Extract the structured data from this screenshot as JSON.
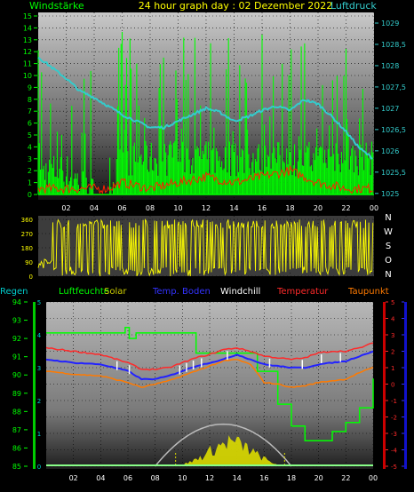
{
  "header": {
    "title": "24 hour graph day : 02 Dezember 2022",
    "left_label": "Windstärke",
    "right_label": "Luftdruck"
  },
  "colors": {
    "wind": "#00ff00",
    "gust": "#ff2200",
    "pressure": "#33cccc",
    "direction": "#ffff00",
    "humidity": "#00ff00",
    "temperature": "#ff2a2a",
    "dewpoint": "#ff7a00",
    "windchill": "#ffffff",
    "ground": "#2222ff",
    "solar": "#aaaaaa"
  },
  "chart_data": [
    {
      "type": "line",
      "name": "wind-pressure",
      "x_ticks": [
        "02",
        "04",
        "06",
        "08",
        "10",
        "12",
        "14",
        "16",
        "18",
        "20",
        "22",
        "00"
      ],
      "y_left_ticks": [
        "0",
        "1",
        "2",
        "3",
        "4",
        "5",
        "6",
        "7",
        "8",
        "9",
        "10",
        "11",
        "12",
        "13",
        "14",
        "15"
      ],
      "y_right_ticks": [
        "1025",
        "1025,5",
        "1026",
        "1026,5",
        "1027",
        "1027,5",
        "1028",
        "1028,5",
        "1029"
      ],
      "y_left_range": [
        0,
        15
      ],
      "y_right_range": [
        1024.85,
        1029.25
      ],
      "pressure": {
        "x": [
          0,
          1,
          2,
          3,
          4,
          5,
          6,
          7,
          8,
          9,
          10,
          11,
          12,
          13,
          14,
          15,
          16,
          17,
          18,
          19,
          20,
          21,
          22,
          23,
          24
        ],
        "y": [
          1028.2,
          1027.95,
          1027.7,
          1027.4,
          1027.25,
          1027.05,
          1026.85,
          1026.7,
          1026.55,
          1026.55,
          1026.7,
          1026.85,
          1027.0,
          1026.9,
          1026.7,
          1026.8,
          1026.95,
          1027.05,
          1026.95,
          1027.2,
          1027.1,
          1026.8,
          1026.45,
          1026.05,
          1025.8
        ]
      },
      "wind_avg": {
        "x": [
          0,
          2,
          4,
          5,
          6,
          8,
          10,
          12,
          14,
          16,
          18,
          20,
          22,
          24
        ],
        "y": [
          2,
          2,
          0,
          0,
          3,
          3,
          3,
          3,
          3,
          3,
          3,
          3,
          3,
          3
        ]
      },
      "gust": {
        "x": [
          0,
          5,
          6,
          8,
          10,
          12,
          14,
          16,
          18,
          20,
          22,
          24
        ],
        "y": [
          0.5,
          0.5,
          1,
          0.5,
          1,
          1.5,
          1,
          1.5,
          2,
          1,
          0.5,
          0.5
        ]
      }
    },
    {
      "type": "line",
      "name": "wind-direction",
      "y_left_ticks": [
        "0",
        "90",
        "180",
        "270",
        "360"
      ],
      "y_range": [
        0,
        360
      ],
      "y_right_labels": [
        "N",
        "W",
        "S",
        "O",
        "N"
      ]
    },
    {
      "type": "line",
      "name": "climate",
      "legend": [
        "Regen",
        "Luftfeuchte",
        "Solar",
        "Temp. Boden",
        "Windchill",
        "Temperatur",
        "Taupunkt"
      ],
      "x_ticks": [
        "02",
        "04",
        "06",
        "08",
        "10",
        "12",
        "14",
        "16",
        "18",
        "20",
        "22",
        "00"
      ],
      "y_humidity_ticks": [
        "85",
        "86",
        "87",
        "88",
        "89",
        "90",
        "91",
        "92",
        "93",
        "94"
      ],
      "y_rain_ticks": [
        "0",
        "1",
        "2",
        "3",
        "4",
        "5"
      ],
      "y_temp_ticks": [
        "5",
        "4",
        "3",
        "2",
        "1",
        "0",
        "-1",
        "-2",
        "-3",
        "-4",
        "-5"
      ],
      "humidity_range": [
        85,
        94
      ],
      "temp_range": [
        -5,
        5
      ],
      "temperature": {
        "x": [
          0,
          2,
          4,
          6,
          7,
          8,
          9,
          10,
          11,
          12,
          13,
          14,
          15,
          16,
          17,
          18,
          19,
          20,
          21,
          22,
          23,
          24
        ],
        "y": [
          2.2,
          2.0,
          1.8,
          1.3,
          0.9,
          0.9,
          1.0,
          1.3,
          1.6,
          1.8,
          2.1,
          2.2,
          2.0,
          1.7,
          1.6,
          1.5,
          1.6,
          1.9,
          2.0,
          2.0,
          2.2,
          2.5
        ]
      },
      "dewpoint": {
        "x": [
          0,
          2,
          4,
          6,
          7,
          8,
          9,
          10,
          11,
          12,
          13,
          14,
          15,
          16,
          17,
          18,
          19,
          20,
          21,
          22,
          23,
          24
        ],
        "y": [
          0.8,
          0.6,
          0.5,
          0.1,
          -0.2,
          0.0,
          0.2,
          0.5,
          0.8,
          1.1,
          1.4,
          1.5,
          1.2,
          0.1,
          0.0,
          -0.2,
          -0.1,
          0.1,
          0.2,
          0.3,
          0.7,
          1.0
        ]
      },
      "ground_temp": {
        "x": [
          0,
          2,
          4,
          6,
          7,
          8,
          9,
          10,
          11,
          12,
          13,
          14,
          15,
          16,
          17,
          18,
          19,
          20,
          21,
          22,
          23,
          24
        ],
        "y": [
          1.5,
          1.3,
          1.2,
          0.8,
          0.3,
          0.3,
          0.5,
          0.8,
          1.1,
          1.3,
          1.5,
          1.8,
          1.5,
          1.2,
          1.1,
          1.0,
          1.0,
          1.2,
          1.3,
          1.4,
          1.7,
          2.0
        ]
      },
      "humidity": {
        "x": [
          0,
          5,
          5.8,
          6.1,
          6.6,
          10.5,
          11,
          15.5,
          17,
          18,
          19,
          20,
          21,
          22,
          23,
          24
        ],
        "y": [
          92.3,
          92.3,
          92.6,
          92.0,
          92.3,
          92.3,
          91.2,
          90.2,
          88.4,
          87.2,
          86.4,
          86.4,
          86.9,
          87.4,
          88.2,
          89.8
        ]
      },
      "solar": {
        "x": [
          9.5,
          10.5,
          11.5,
          12.5,
          13.5,
          14.5,
          15.5,
          16.5,
          17.5
        ],
        "y": [
          0,
          0.3,
          0.8,
          1.5,
          2.0,
          1.6,
          0.9,
          0.3,
          0
        ]
      }
    }
  ]
}
